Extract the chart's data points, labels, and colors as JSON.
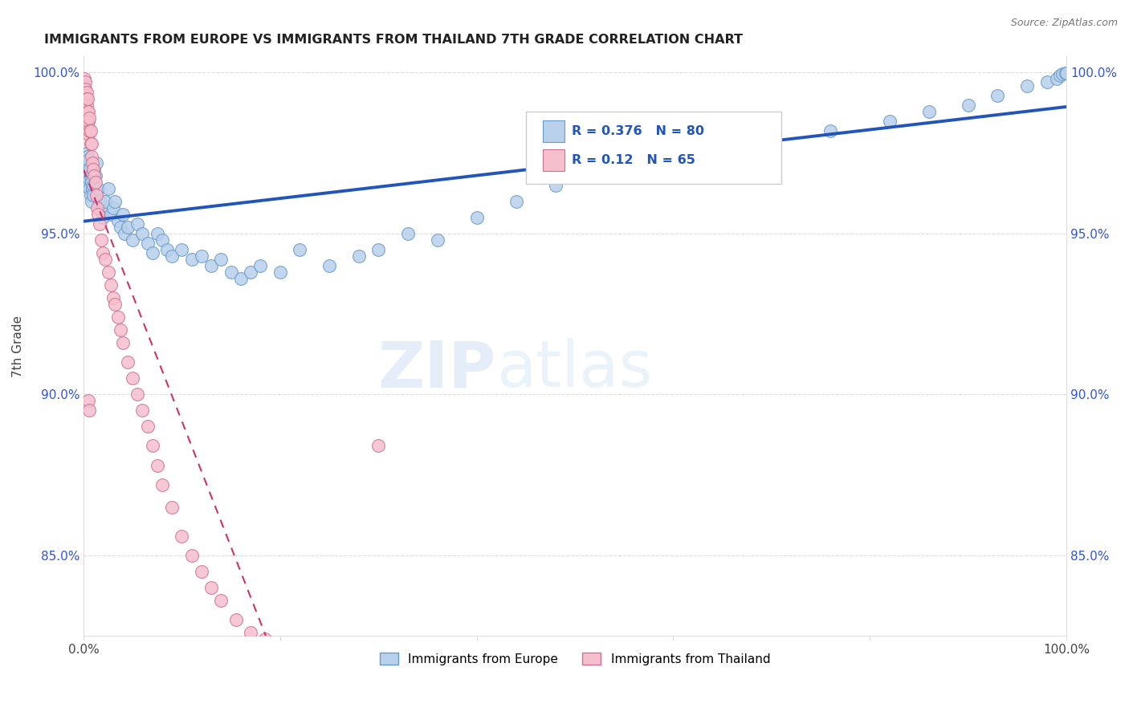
{
  "title": "IMMIGRANTS FROM EUROPE VS IMMIGRANTS FROM THAILAND 7TH GRADE CORRELATION CHART",
  "source": "Source: ZipAtlas.com",
  "ylabel": "7th Grade",
  "xlim": [
    0.0,
    1.0
  ],
  "ylim": [
    0.825,
    1.005
  ],
  "xticks": [
    0.0,
    0.2,
    0.4,
    0.6,
    0.8,
    1.0
  ],
  "xticklabels": [
    "0.0%",
    "",
    "",
    "",
    "",
    "100.0%"
  ],
  "yticks": [
    0.85,
    0.9,
    0.95,
    1.0
  ],
  "yticklabels": [
    "85.0%",
    "90.0%",
    "95.0%",
    "100.0%"
  ],
  "europe_R": 0.376,
  "europe_N": 80,
  "thailand_R": 0.12,
  "thailand_N": 65,
  "europe_color": "#b8d0ea",
  "europe_edge": "#6699cc",
  "thailand_color": "#f5bfce",
  "thailand_edge": "#d07090",
  "europe_trend_color": "#2255bb",
  "thailand_trend_color": "#cc3366",
  "ytick_color": "#3355cc",
  "legend_R_color": "#2255bb",
  "europe_x": [
    0.002,
    0.003,
    0.003,
    0.004,
    0.004,
    0.004,
    0.005,
    0.005,
    0.005,
    0.006,
    0.006,
    0.006,
    0.007,
    0.007,
    0.008,
    0.008,
    0.009,
    0.01,
    0.01,
    0.011,
    0.012,
    0.013,
    0.015,
    0.016,
    0.018,
    0.02,
    0.022,
    0.025,
    0.028,
    0.03,
    0.032,
    0.035,
    0.038,
    0.04,
    0.042,
    0.045,
    0.05,
    0.055,
    0.06,
    0.065,
    0.07,
    0.075,
    0.08,
    0.085,
    0.09,
    0.1,
    0.11,
    0.12,
    0.13,
    0.14,
    0.15,
    0.16,
    0.17,
    0.18,
    0.2,
    0.22,
    0.25,
    0.28,
    0.3,
    0.33,
    0.36,
    0.4,
    0.44,
    0.48,
    0.53,
    0.58,
    0.64,
    0.7,
    0.76,
    0.82,
    0.86,
    0.9,
    0.93,
    0.96,
    0.98,
    0.99,
    0.993,
    0.996,
    0.999,
    0.9999
  ],
  "europe_y": [
    0.972,
    0.975,
    0.968,
    0.971,
    0.966,
    0.974,
    0.969,
    0.973,
    0.965,
    0.97,
    0.967,
    0.964,
    0.968,
    0.962,
    0.966,
    0.96,
    0.964,
    0.965,
    0.962,
    0.97,
    0.968,
    0.972,
    0.964,
    0.96,
    0.957,
    0.955,
    0.96,
    0.964,
    0.956,
    0.958,
    0.96,
    0.954,
    0.952,
    0.956,
    0.95,
    0.952,
    0.948,
    0.953,
    0.95,
    0.947,
    0.944,
    0.95,
    0.948,
    0.945,
    0.943,
    0.945,
    0.942,
    0.943,
    0.94,
    0.942,
    0.938,
    0.936,
    0.938,
    0.94,
    0.938,
    0.945,
    0.94,
    0.943,
    0.945,
    0.95,
    0.948,
    0.955,
    0.96,
    0.965,
    0.968,
    0.972,
    0.975,
    0.98,
    0.982,
    0.985,
    0.988,
    0.99,
    0.993,
    0.996,
    0.997,
    0.998,
    0.999,
    0.9995,
    0.9999,
    0.9999
  ],
  "thailand_x": [
    0.001,
    0.001,
    0.001,
    0.001,
    0.001,
    0.002,
    0.002,
    0.002,
    0.002,
    0.002,
    0.002,
    0.003,
    0.003,
    0.003,
    0.003,
    0.004,
    0.004,
    0.004,
    0.005,
    0.005,
    0.005,
    0.006,
    0.006,
    0.007,
    0.007,
    0.008,
    0.008,
    0.009,
    0.01,
    0.011,
    0.012,
    0.013,
    0.014,
    0.015,
    0.016,
    0.018,
    0.02,
    0.022,
    0.025,
    0.028,
    0.03,
    0.032,
    0.035,
    0.038,
    0.04,
    0.045,
    0.05,
    0.055,
    0.06,
    0.065,
    0.07,
    0.075,
    0.08,
    0.09,
    0.1,
    0.11,
    0.12,
    0.13,
    0.14,
    0.155,
    0.17,
    0.185,
    0.005,
    0.006,
    0.3
  ],
  "thailand_y": [
    0.998,
    0.996,
    0.994,
    0.992,
    0.99,
    0.997,
    0.995,
    0.993,
    0.991,
    0.989,
    0.987,
    0.994,
    0.992,
    0.99,
    0.986,
    0.992,
    0.988,
    0.984,
    0.988,
    0.985,
    0.981,
    0.986,
    0.982,
    0.982,
    0.978,
    0.978,
    0.974,
    0.972,
    0.97,
    0.968,
    0.966,
    0.962,
    0.958,
    0.956,
    0.953,
    0.948,
    0.944,
    0.942,
    0.938,
    0.934,
    0.93,
    0.928,
    0.924,
    0.92,
    0.916,
    0.91,
    0.905,
    0.9,
    0.895,
    0.89,
    0.884,
    0.878,
    0.872,
    0.865,
    0.856,
    0.85,
    0.845,
    0.84,
    0.836,
    0.83,
    0.826,
    0.824,
    0.898,
    0.895,
    0.884
  ]
}
